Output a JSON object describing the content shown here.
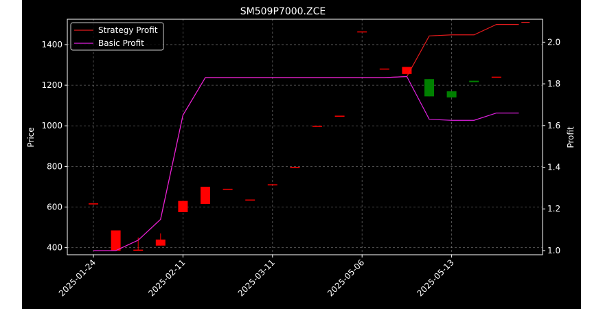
{
  "chart_data": {
    "type": "candlestick",
    "title": "SM509P7000.ZCE",
    "xlabel": "",
    "ylabel_left": "Price",
    "ylabel_right": "Profit",
    "ylim_left": [
      365,
      1525
    ],
    "ylim_right": [
      0.98,
      2.11
    ],
    "yticks_left": [
      400,
      600,
      800,
      1000,
      1200,
      1400
    ],
    "yticks_right": [
      1.0,
      1.2,
      1.4,
      1.6,
      1.8,
      2.0
    ],
    "xticks": [
      {
        "index": 0,
        "label": "2025-01-24"
      },
      {
        "index": 4,
        "label": "2025-02-11"
      },
      {
        "index": 8,
        "label": "2025-03-11"
      },
      {
        "index": 12,
        "label": "2025-05-06"
      },
      {
        "index": 16,
        "label": "2025-05-13"
      }
    ],
    "grid": true,
    "legend_position": "top-left",
    "candles": [
      {
        "open": 618,
        "close": 618,
        "high": 618,
        "low": 618
      },
      {
        "open": 385,
        "close": 485,
        "high": 485,
        "low": 385
      },
      {
        "open": 390,
        "close": 390,
        "high": 450,
        "low": 385
      },
      {
        "open": 410,
        "close": 440,
        "high": 470,
        "low": 410
      },
      {
        "open": 575,
        "close": 630,
        "high": 630,
        "low": 575
      },
      {
        "open": 615,
        "close": 700,
        "high": 700,
        "low": 615
      },
      {
        "open": 690,
        "close": 690,
        "high": 690,
        "low": 690
      },
      {
        "open": 637,
        "close": 637,
        "high": 637,
        "low": 637
      },
      {
        "open": 712,
        "close": 712,
        "high": 712,
        "low": 712
      },
      {
        "open": 798,
        "close": 798,
        "high": 798,
        "low": 798
      },
      {
        "open": 1000,
        "close": 1000,
        "high": 1000,
        "low": 1000
      },
      {
        "open": 1050,
        "close": 1050,
        "high": 1050,
        "low": 1050
      },
      {
        "open": 1465,
        "close": 1465,
        "high": 1465,
        "low": 1465
      },
      {
        "open": 1282,
        "close": 1282,
        "high": 1282,
        "low": 1282
      },
      {
        "open": 1255,
        "close": 1290,
        "high": 1290,
        "low": 1255
      },
      {
        "open": 1230,
        "close": 1145,
        "high": 1230,
        "low": 1145
      },
      {
        "open": 1170,
        "close": 1140,
        "high": 1170,
        "low": 1140
      },
      {
        "open": 1222,
        "close": 1215,
        "high": 1222,
        "low": 1215
      },
      {
        "open": 1242,
        "close": 1242,
        "high": 1242,
        "low": 1242
      }
    ],
    "series": [
      {
        "name": "Strategy Profit",
        "color": "#e41a1c",
        "x": [
          0,
          1,
          2,
          3,
          4,
          5,
          6,
          7,
          8,
          9,
          10,
          11,
          12,
          13,
          14,
          15,
          16,
          17,
          18,
          19
        ],
        "values": [
          1.0,
          1.0,
          1.05,
          1.15,
          1.65,
          1.83,
          1.83,
          1.83,
          1.83,
          1.83,
          1.83,
          1.83,
          1.83,
          1.83,
          1.835,
          2.03,
          2.035,
          2.035,
          2.085,
          2.085
        ]
      },
      {
        "name": "Basic Profit",
        "color": "#e020e0",
        "x": [
          0,
          1,
          2,
          3,
          4,
          5,
          6,
          7,
          8,
          9,
          10,
          11,
          12,
          13,
          14,
          15,
          16,
          17,
          18,
          19
        ],
        "values": [
          1.0,
          1.0,
          1.05,
          1.15,
          1.65,
          1.83,
          1.83,
          1.83,
          1.83,
          1.83,
          1.83,
          1.83,
          1.83,
          1.83,
          1.835,
          1.63,
          1.625,
          1.625,
          1.66,
          1.66
        ]
      }
    ],
    "series_end_marker": {
      "x": 19.3,
      "value": 2.095
    },
    "colors": {
      "up": "#ff0000",
      "down": "#008000",
      "grid": "#8c8c8c",
      "text": "#ffffff",
      "background": "#000000"
    }
  }
}
